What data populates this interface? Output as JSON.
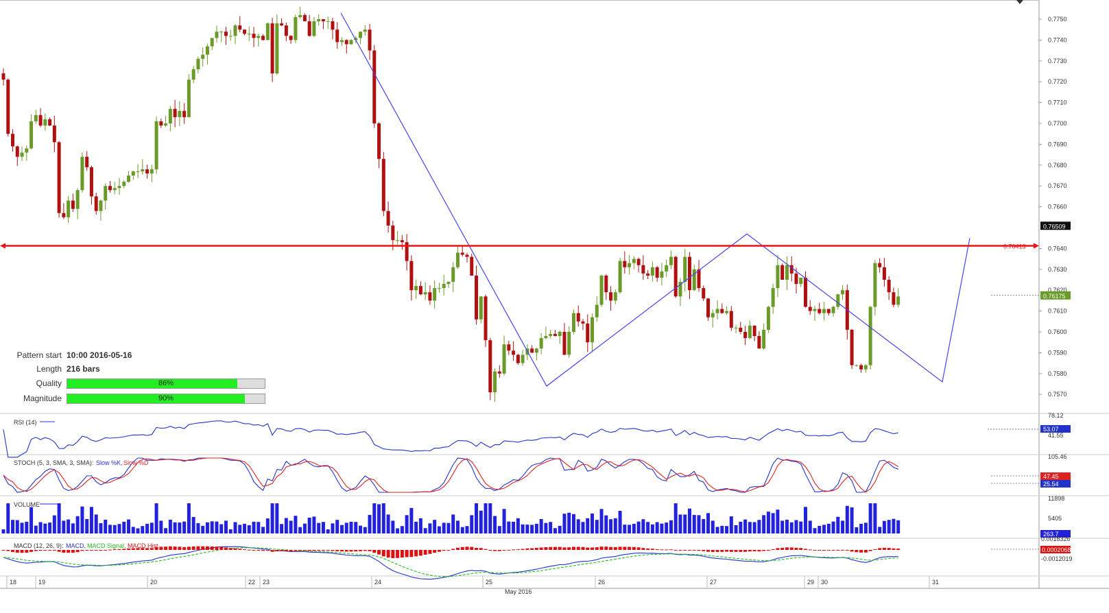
{
  "colors": {
    "up": "#6a9a28",
    "down": "#b01010",
    "pattern": "#4444ee",
    "resist": "#ee1111",
    "volume": "#2222dd",
    "rsi": "#2233cc",
    "stochK": "#2233cc",
    "stochD": "#dd2222",
    "macd": "#2233cc",
    "signal": "#22bb22",
    "hist": "#dd1111"
  },
  "info": {
    "pattern_start_label": "Pattern start",
    "pattern_start_value": "10:00 2016-05-16",
    "length_label": "Length",
    "length_value": "216 bars",
    "quality_label": "Quality",
    "quality_value": 0.86,
    "quality_text": "86%",
    "magnitude_label": "Magnitude",
    "magnitude_value": 0.9,
    "magnitude_text": "90%"
  },
  "chart_data": {
    "type": "candlestick",
    "price_ticks": [
      "0.7750",
      "0.7740",
      "0.7730",
      "0.7720",
      "0.7710",
      "0.7700",
      "0.7690",
      "0.7680",
      "0.7670",
      "0.7660",
      "0.7640",
      "0.7630",
      "0.7610",
      "0.7600",
      "0.7590",
      "0.7580",
      "0.7570"
    ],
    "current_price_label": "0.76509",
    "resistance": {
      "value": 0.76413,
      "label": "0.76413"
    },
    "last_price": {
      "value": 0.76175,
      "label": "0.76175"
    },
    "hidden_tick": "0.7620",
    "x_labels": [
      {
        "t": "18",
        "x": 10
      },
      {
        "t": "19",
        "x": 52
      },
      {
        "t": "20",
        "x": 215
      },
      {
        "t": "22",
        "x": 358
      },
      {
        "t": "23",
        "x": 379
      },
      {
        "t": "24",
        "x": 542
      },
      {
        "t": "25",
        "x": 704
      },
      {
        "t": "26",
        "x": 868
      },
      {
        "t": "27",
        "x": 1031
      },
      {
        "t": "29",
        "x": 1173
      },
      {
        "t": "30",
        "x": 1193
      },
      {
        "t": "31",
        "x": 1355
      }
    ],
    "month_label": "May 2016",
    "closes": [
      0.7721,
      0.7695,
      0.7689,
      0.7684,
      0.7686,
      0.7688,
      0.7701,
      0.7704,
      0.7699,
      0.7702,
      0.7699,
      0.7691,
      0.7657,
      0.7655,
      0.7663,
      0.7659,
      0.7668,
      0.7684,
      0.7679,
      0.7665,
      0.7658,
      0.7663,
      0.767,
      0.7668,
      0.7669,
      0.767,
      0.7672,
      0.7675,
      0.7677,
      0.7677,
      0.7678,
      0.7676,
      0.7678,
      0.7701,
      0.7699,
      0.77,
      0.7707,
      0.7703,
      0.7706,
      0.7703,
      0.7721,
      0.7726,
      0.7731,
      0.7733,
      0.7737,
      0.7741,
      0.7744,
      0.7744,
      0.7742,
      0.7742,
      0.7747,
      0.7745,
      0.7743,
      0.7743,
      0.7741,
      0.7742,
      0.774,
      0.7748,
      0.7724,
      0.7748,
      0.7747,
      0.7742,
      0.774,
      0.7751,
      0.7752,
      0.7749,
      0.7742,
      0.7749,
      0.775,
      0.7749,
      0.7749,
      0.7745,
      0.7739,
      0.774,
      0.7738,
      0.774,
      0.7741,
      0.7744,
      0.7745,
      0.7735,
      0.77,
      0.7683,
      0.7658,
      0.7651,
      0.7644,
      0.7644,
      0.7643,
      0.7634,
      0.762,
      0.7622,
      0.7618,
      0.7619,
      0.7615,
      0.7621,
      0.7621,
      0.7623,
      0.7624,
      0.7631,
      0.7638,
      0.7637,
      0.7636,
      0.7627,
      0.7606,
      0.7617,
      0.7596,
      0.7571,
      0.7581,
      0.758,
      0.7594,
      0.7591,
      0.7589,
      0.7585,
      0.7589,
      0.7592,
      0.759,
      0.7592,
      0.7597,
      0.7598,
      0.7599,
      0.7598,
      0.76,
      0.7589,
      0.76,
      0.7609,
      0.7605,
      0.7604,
      0.7595,
      0.7607,
      0.7613,
      0.7627,
      0.7619,
      0.7615,
      0.7619,
      0.7634,
      0.7631,
      0.7633,
      0.7635,
      0.7632,
      0.7628,
      0.7627,
      0.7631,
      0.7626,
      0.7629,
      0.7632,
      0.7636,
      0.7617,
      0.7624,
      0.7636,
      0.762,
      0.763,
      0.7621,
      0.7616,
      0.7607,
      0.7609,
      0.7611,
      0.7609,
      0.761,
      0.7602,
      0.7602,
      0.76,
      0.7597,
      0.7603,
      0.7598,
      0.7592,
      0.7601,
      0.7612,
      0.7621,
      0.7632,
      0.7625,
      0.7632,
      0.7628,
      0.7623,
      0.7626,
      0.7612,
      0.761,
      0.7611,
      0.7609,
      0.7611,
      0.7609,
      0.7612,
      0.7618,
      0.762,
      0.7601,
      0.7584,
      0.7584,
      0.7582,
      0.7584,
      0.7612,
      0.7633,
      0.7631,
      0.7625,
      0.7619,
      0.7613,
      0.7617
    ],
    "pattern_points": [
      [
        0.7753,
        497
      ],
      [
        0.7574,
        797
      ],
      [
        0.7647,
        1089
      ],
      [
        0.7576,
        1374
      ],
      [
        0.7645,
        1414
      ]
    ],
    "rsi": {
      "label": "RSI (14)",
      "ticks": [
        "78.12",
        "41.55"
      ],
      "current": "53.07"
    },
    "stoch": {
      "label_prefix": "STOCH (5, 3, SMA, 3, SMA):",
      "k_label": "Slow %K,",
      "d_label": "Slow %D",
      "ticks": [
        "105.46"
      ],
      "k_current": "25.54",
      "d_current": "47.45"
    },
    "volume": {
      "label": "VOLUME",
      "ticks": [
        "11898",
        "5405"
      ],
      "current": "263.7"
    },
    "macd": {
      "label_prefix": "MACD (12, 26, 9):",
      "macd_label": "MACD,",
      "signal_label": "MACD Signal,",
      "hist_label": "MACD Hist",
      "ticks": [
        "0.0018326",
        "-0.0012019"
      ],
      "current": "0.0002068"
    }
  }
}
